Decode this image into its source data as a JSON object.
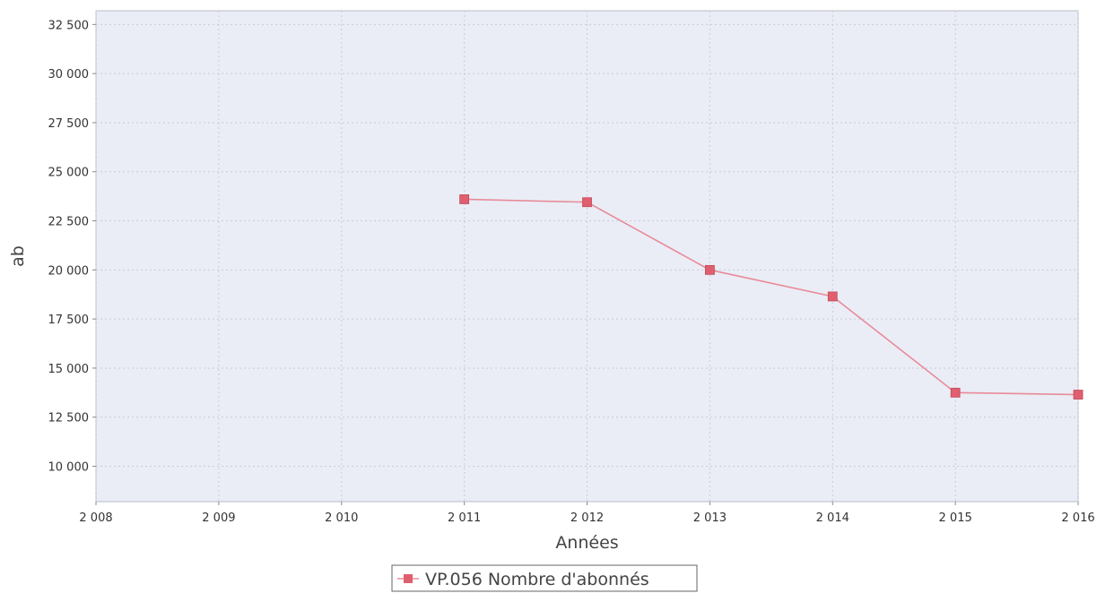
{
  "chart_data": {
    "type": "line",
    "title": "",
    "xlabel": "Années",
    "ylabel": "ab",
    "x_ticks": [
      "2 008",
      "2 009",
      "2 010",
      "2 011",
      "2 012",
      "2 013",
      "2 014",
      "2 015",
      "2 016"
    ],
    "y_ticks": [
      "10 000",
      "12 500",
      "15 000",
      "17 500",
      "20 000",
      "22 500",
      "25 000",
      "27 500",
      "30 000",
      "32 500"
    ],
    "xlim": [
      2008,
      2016
    ],
    "ylim": [
      8200,
      33200
    ],
    "grid": true,
    "legend_position": "bottom-center",
    "series": [
      {
        "name": "VP.056 Nombre d'abonnés",
        "color": "#e0607a",
        "marker": "square",
        "x": [
          2011,
          2012,
          2013,
          2014,
          2015,
          2016
        ],
        "y": [
          23600,
          23450,
          20000,
          18650,
          13750,
          13650
        ]
      }
    ],
    "colors": {
      "plot_background": "#eaedf5",
      "grid": "#c8ccd6",
      "line": "#e88b9a",
      "marker": "#df5f6f"
    }
  }
}
